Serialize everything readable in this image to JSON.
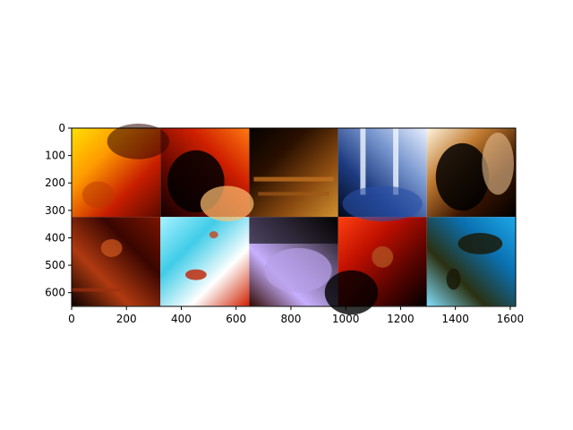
{
  "chart_data": {
    "type": "image_grid",
    "title": "",
    "xlabel": "",
    "ylabel": "",
    "xlim": [
      0,
      1620
    ],
    "ylim": [
      650,
      0
    ],
    "xticks": [
      0,
      200,
      400,
      600,
      800,
      1000,
      1200,
      1400,
      1600
    ],
    "yticks": [
      0,
      100,
      200,
      300,
      400,
      500,
      600
    ],
    "grid": false,
    "tile_size": 324,
    "rows": 2,
    "cols": 5,
    "tiles": [
      {
        "row": 0,
        "col": 0,
        "desc": "yellow-orange",
        "colors": [
          "#ffe000",
          "#ff9a00",
          "#c81e00",
          "#5a0a00"
        ]
      },
      {
        "row": 0,
        "col": 1,
        "desc": "red-orange pipe",
        "colors": [
          "#ff7a10",
          "#d02000",
          "#6a0800",
          "#100000"
        ]
      },
      {
        "row": 0,
        "col": 2,
        "desc": "dark interior",
        "colors": [
          "#050200",
          "#2a1000",
          "#8a4a10",
          "#d09030"
        ]
      },
      {
        "row": 0,
        "col": 3,
        "desc": "blue duct",
        "colors": [
          "#e8f0ff",
          "#7a98d0",
          "#1d3a80",
          "#020818"
        ]
      },
      {
        "row": 0,
        "col": 4,
        "desc": "dark arch",
        "colors": [
          "#fff6e0",
          "#c07a30",
          "#3a1400",
          "#000000"
        ]
      },
      {
        "row": 1,
        "col": 0,
        "desc": "dark red",
        "colors": [
          "#7a1400",
          "#3a0600",
          "#b03a10",
          "#0a0000"
        ]
      },
      {
        "row": 1,
        "col": 1,
        "desc": "cyan with specks",
        "colors": [
          "#a8f2ff",
          "#40cce8",
          "#ffffff",
          "#d02000"
        ]
      },
      {
        "row": 1,
        "col": 2,
        "desc": "purple panel",
        "colors": [
          "#0a0505",
          "#6a5a80",
          "#c8b0ff",
          "#300800"
        ]
      },
      {
        "row": 1,
        "col": 3,
        "desc": "red surface",
        "colors": [
          "#ff4010",
          "#c01000",
          "#5a0400",
          "#000000"
        ]
      },
      {
        "row": 1,
        "col": 4,
        "desc": "blue with blob",
        "colors": [
          "#1ea8e8",
          "#0a70b0",
          "#2a3010",
          "#80e0ff"
        ]
      }
    ]
  }
}
